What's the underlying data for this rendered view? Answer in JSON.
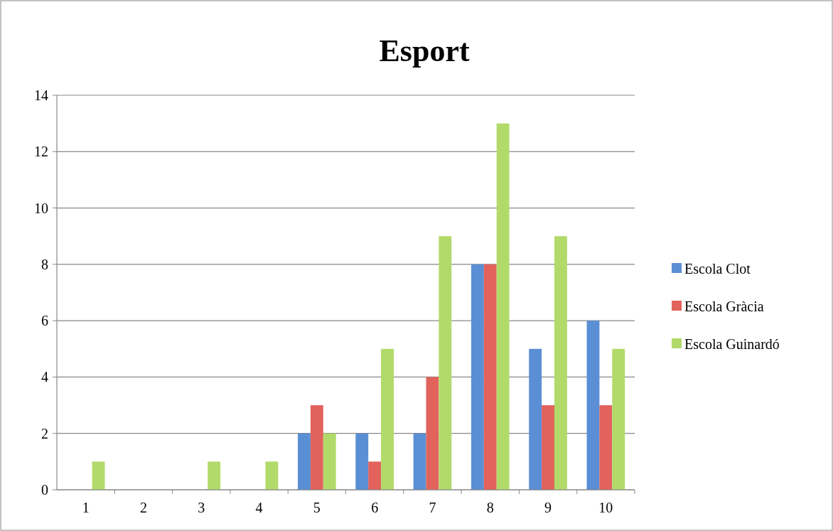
{
  "chart_data": {
    "type": "bar",
    "title": "Esport",
    "categories": [
      "1",
      "2",
      "3",
      "4",
      "5",
      "6",
      "7",
      "8",
      "9",
      "10"
    ],
    "series": [
      {
        "name": "Escola Clot",
        "color": "#5a8fd6",
        "values": [
          0,
          0,
          0,
          0,
          2,
          2,
          2,
          8,
          5,
          6
        ]
      },
      {
        "name": "Escola Gràcia",
        "color": "#e2625c",
        "values": [
          0,
          0,
          0,
          0,
          3,
          1,
          4,
          8,
          3,
          3
        ]
      },
      {
        "name": "Escola Guinardó",
        "color": "#b2da6a",
        "values": [
          1,
          0,
          1,
          1,
          2,
          5,
          9,
          13,
          9,
          5
        ]
      }
    ],
    "ylim": [
      0,
      14
    ],
    "yticks": [
      0,
      2,
      4,
      6,
      8,
      10,
      12,
      14
    ],
    "grid": "y",
    "legend": "right"
  }
}
